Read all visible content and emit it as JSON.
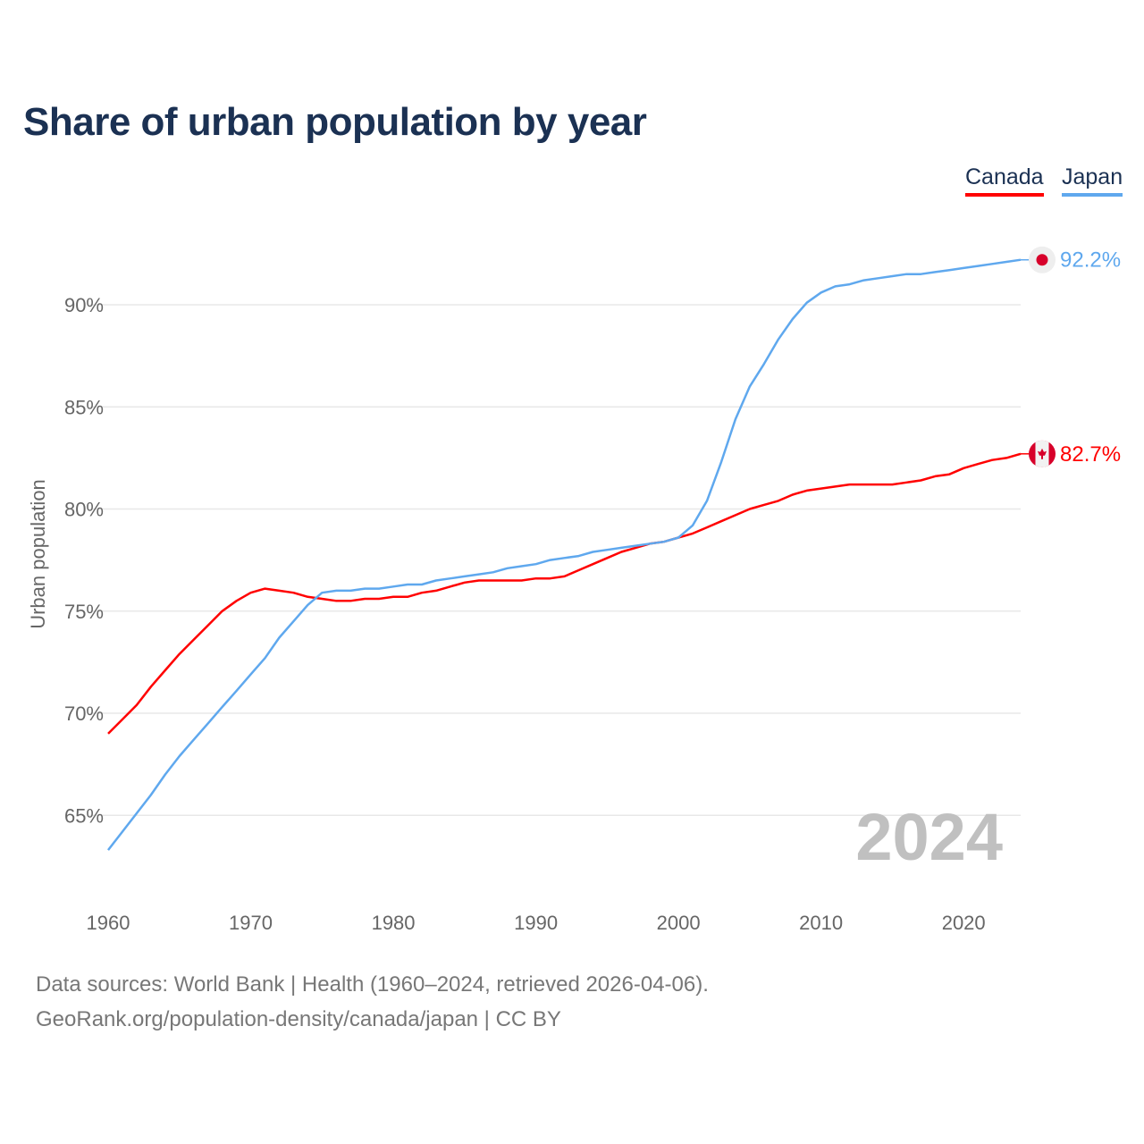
{
  "chart_data": {
    "type": "line",
    "title": "Share of urban population by year",
    "ylabel": "Urban population",
    "xlabel": "",
    "xlim": [
      1960,
      2024
    ],
    "ylim": [
      62.5,
      94
    ],
    "x_ticks": [
      1960,
      1970,
      1980,
      1990,
      2000,
      2010,
      2020
    ],
    "y_ticks": [
      65,
      70,
      75,
      80,
      85,
      90
    ],
    "y_tick_labels": [
      "65%",
      "70%",
      "75%",
      "80%",
      "85%",
      "90%"
    ],
    "grid": true,
    "legend_position": "top-right",
    "year_marker": "2024",
    "x": [
      1960,
      1961,
      1962,
      1963,
      1964,
      1965,
      1966,
      1967,
      1968,
      1969,
      1970,
      1971,
      1972,
      1973,
      1974,
      1975,
      1976,
      1977,
      1978,
      1979,
      1980,
      1981,
      1982,
      1983,
      1984,
      1985,
      1986,
      1987,
      1988,
      1989,
      1990,
      1991,
      1992,
      1993,
      1994,
      1995,
      1996,
      1997,
      1998,
      1999,
      2000,
      2001,
      2002,
      2003,
      2004,
      2005,
      2006,
      2007,
      2008,
      2009,
      2010,
      2011,
      2012,
      2013,
      2014,
      2015,
      2016,
      2017,
      2018,
      2019,
      2020,
      2021,
      2022,
      2023,
      2024
    ],
    "series": [
      {
        "name": "Canada",
        "color": "#ff0000",
        "end_label": "82.7%",
        "flag": "canada-flag",
        "values": [
          69.0,
          69.7,
          70.4,
          71.3,
          72.1,
          72.9,
          73.6,
          74.3,
          75.0,
          75.5,
          75.9,
          76.1,
          76.0,
          75.9,
          75.7,
          75.6,
          75.5,
          75.5,
          75.6,
          75.6,
          75.7,
          75.7,
          75.9,
          76.0,
          76.2,
          76.4,
          76.5,
          76.5,
          76.5,
          76.5,
          76.6,
          76.6,
          76.7,
          77.0,
          77.3,
          77.6,
          77.9,
          78.1,
          78.3,
          78.4,
          78.6,
          78.8,
          79.1,
          79.4,
          79.7,
          80.0,
          80.2,
          80.4,
          80.7,
          80.9,
          81.0,
          81.1,
          81.2,
          81.2,
          81.2,
          81.2,
          81.3,
          81.4,
          81.6,
          81.7,
          82.0,
          82.2,
          82.4,
          82.5,
          82.7
        ]
      },
      {
        "name": "Japan",
        "color": "#5fa8ee",
        "end_label": "92.2%",
        "flag": "japan-flag",
        "values": [
          63.3,
          64.2,
          65.1,
          66.0,
          67.0,
          67.9,
          68.7,
          69.5,
          70.3,
          71.1,
          71.9,
          72.7,
          73.7,
          74.5,
          75.3,
          75.9,
          76.0,
          76.0,
          76.1,
          76.1,
          76.2,
          76.3,
          76.3,
          76.5,
          76.6,
          76.7,
          76.8,
          76.9,
          77.1,
          77.2,
          77.3,
          77.5,
          77.6,
          77.7,
          77.9,
          78.0,
          78.1,
          78.2,
          78.3,
          78.4,
          78.6,
          79.2,
          80.4,
          82.3,
          84.4,
          86.0,
          87.1,
          88.3,
          89.3,
          90.1,
          90.6,
          90.9,
          91.0,
          91.2,
          91.3,
          91.4,
          91.5,
          91.5,
          91.6,
          91.7,
          91.8,
          91.9,
          92.0,
          92.1,
          92.2
        ]
      }
    ]
  },
  "legend": {
    "canada": "Canada",
    "japan": "Japan"
  },
  "footer": {
    "line1": "Data sources: World Bank | Health (1960–2024, retrieved 2026-04-06).",
    "line2": "GeoRank.org/population-density/canada/japan | CC BY"
  }
}
